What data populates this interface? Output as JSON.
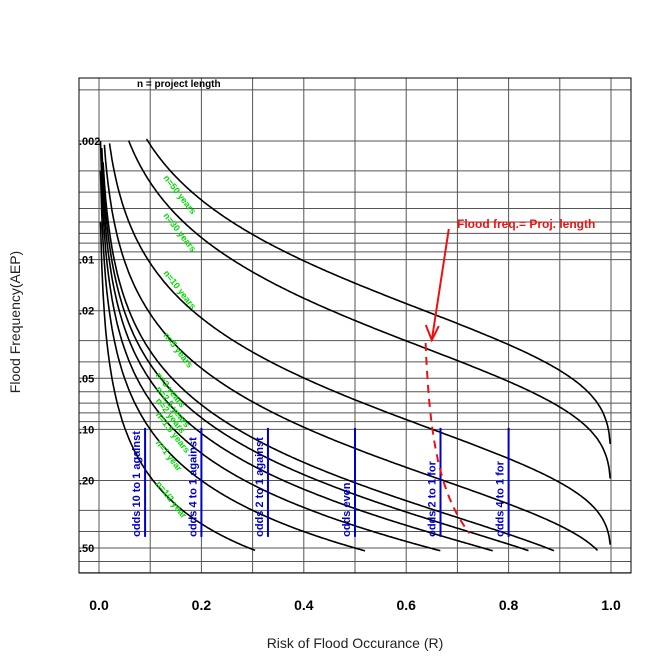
{
  "chart_data": {
    "type": "line",
    "xlabel": "Risk of Flood Occurance (R)",
    "ylabel": "Flood Frequency(AEP)",
    "xlim": [
      0,
      1
    ],
    "ylim": [
      0.002,
      0.5
    ],
    "y_scale": "log",
    "x_ticks": [
      "0.0",
      "0.2",
      "0.4",
      "0.6",
      "0.8",
      "1.0"
    ],
    "x_tick_values": [
      0,
      0.2,
      0.4,
      0.6,
      0.8,
      1.0
    ],
    "y_ticks": [
      ".002",
      ".01",
      ".02",
      ".05",
      ".10",
      ".20",
      ".50"
    ],
    "y_tick_values": [
      0.002,
      0.01,
      0.02,
      0.05,
      0.1,
      0.2,
      0.5
    ],
    "grid": true,
    "note": "n = project length",
    "curve_color": "#000000",
    "label_color": "#00dd00",
    "odds_color": "#0000cc",
    "annotation_color": "#ee1111",
    "series": [
      {
        "name": "n=50 years",
        "n": 50
      },
      {
        "name": "n=30 years",
        "n": 30
      },
      {
        "name": "n=10 years",
        "n": 10
      },
      {
        "name": "n=5 years",
        "n": 5
      },
      {
        "name": "n=3 years",
        "n": 3
      },
      {
        "name": "n=2.5 years",
        "n": 2.5
      },
      {
        "name": "n=2 years",
        "n": 2
      },
      {
        "name": "n=1.5 years",
        "n": 1.5
      },
      {
        "name": "n=1 year",
        "n": 1
      },
      {
        "name": "n=1/2 year",
        "n": 0.5
      }
    ],
    "odds_lines": [
      {
        "label": "odds 10 to 1 against",
        "x": 0.09
      },
      {
        "label": "odds 4 to 1 against",
        "x": 0.2
      },
      {
        "label": "odds 2 to 1 against",
        "x": 0.33
      },
      {
        "label": "odds even",
        "x": 0.5
      },
      {
        "label": "odds 2 to 1 for",
        "x": 0.667
      },
      {
        "label": "odds 4 to 1 for",
        "x": 0.8
      }
    ],
    "annotation": {
      "label": "Flood freq.= Proj. length",
      "x": 0.65,
      "y": 0.031
    }
  }
}
